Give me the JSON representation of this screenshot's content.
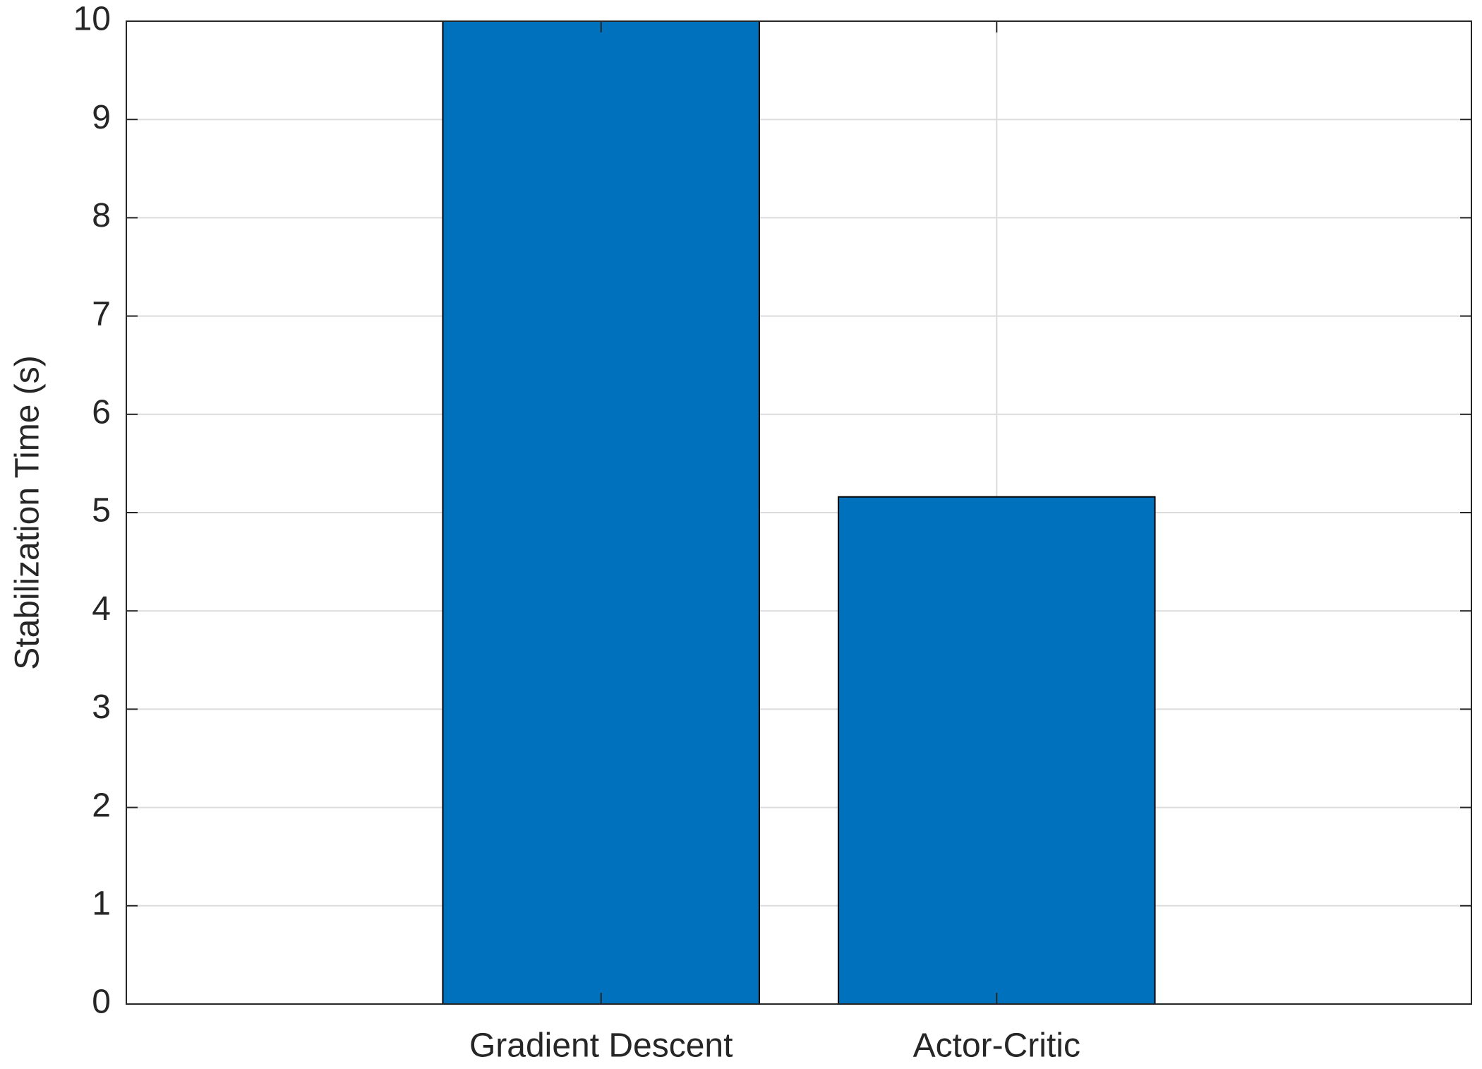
{
  "chart_data": {
    "type": "bar",
    "y_label": "Stabilization Time (s)",
    "categories": [
      "Gradient Descent",
      "Actor-Critic"
    ],
    "values": [
      10,
      5.16
    ],
    "color": "#0072bd",
    "ylim": [
      0,
      10
    ],
    "yticks": [
      0,
      1,
      2,
      3,
      4,
      5,
      6,
      7,
      8,
      9,
      10
    ],
    "grid": true
  }
}
